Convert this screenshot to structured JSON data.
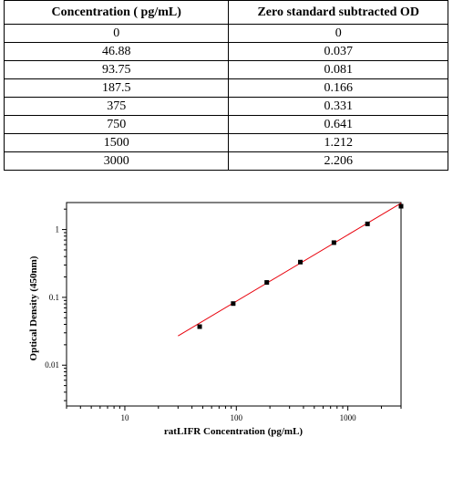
{
  "table": {
    "headers": [
      "Concentration ( pg/mL)",
      "Zero standard subtracted OD"
    ],
    "rows": [
      [
        "0",
        "0"
      ],
      [
        "46.88",
        "0.037"
      ],
      [
        "93.75",
        "0.081"
      ],
      [
        "187.5",
        "0.166"
      ],
      [
        "375",
        "0.331"
      ],
      [
        "750",
        "0.641"
      ],
      [
        "1500",
        "1.212"
      ],
      [
        "3000",
        "2.206"
      ]
    ]
  },
  "chart_data": {
    "type": "scatter",
    "title": "",
    "xlabel": "ratLIFR Concentration (pg/mL)",
    "ylabel": "Optical Density (450nm)",
    "x_scale": "log",
    "y_scale": "log",
    "xlim": [
      3,
      3000
    ],
    "ylim": [
      0.0025,
      2.5
    ],
    "x_ticks": [
      {
        "value": 10,
        "label": "10"
      },
      {
        "value": 100,
        "label": "100"
      },
      {
        "value": 1000,
        "label": "1000"
      }
    ],
    "y_ticks": [
      {
        "value": 0.01,
        "label": "0.01"
      },
      {
        "value": 0.1,
        "label": "0.1"
      },
      {
        "value": 1,
        "label": "1"
      }
    ],
    "grid": false,
    "series": [
      {
        "x": [
          46.88,
          93.75,
          187.5,
          375,
          750,
          1500,
          3000
        ],
        "y": [
          0.037,
          0.081,
          0.166,
          0.331,
          0.641,
          1.212,
          2.206
        ],
        "color": "#000000"
      }
    ],
    "fit_line": {
      "x": [
        30,
        3000
      ],
      "y": [
        0.027,
        2.45
      ],
      "color": "#e8000b"
    }
  }
}
